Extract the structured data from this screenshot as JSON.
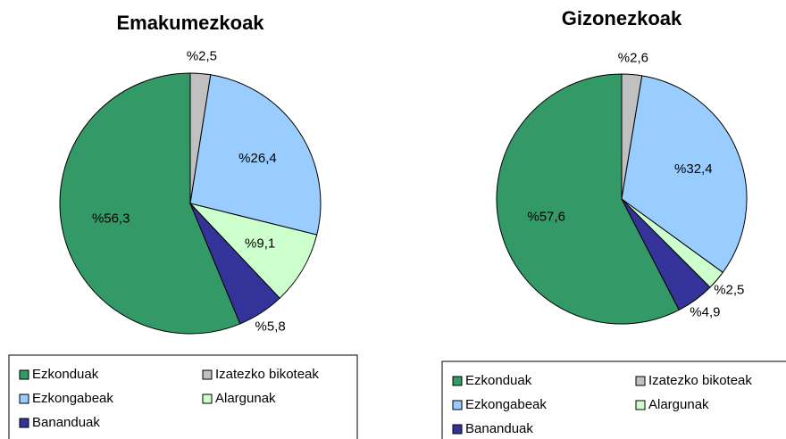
{
  "chart_data": [
    {
      "type": "pie",
      "title": "Emakumezkoak",
      "categories": [
        "Ezkonduak",
        "Izatezko bikoteak",
        "Ezkongabeak",
        "Alargunak",
        "Bananduak"
      ],
      "values": [
        56.3,
        2.5,
        26.4,
        9.1,
        5.8
      ],
      "value_labels": [
        "%56,3",
        "%2,5",
        "%26,4",
        "%9,1",
        "%5,8"
      ],
      "colors": [
        "#339966",
        "#c0c0c0",
        "#99ccff",
        "#ccffcc",
        "#333399"
      ]
    },
    {
      "type": "pie",
      "title": "Gizonezkoak",
      "categories": [
        "Ezkonduak",
        "Izatezko bikoteak",
        "Ezkongabeak",
        "Alargunak",
        "Bananduak"
      ],
      "values": [
        57.6,
        2.6,
        32.4,
        2.5,
        4.9
      ],
      "value_labels": [
        "%57,6",
        "%2,6",
        "%32,4",
        "%2,5",
        "%4,9"
      ],
      "colors": [
        "#339966",
        "#c0c0c0",
        "#99ccff",
        "#ccffcc",
        "#333399"
      ]
    }
  ]
}
